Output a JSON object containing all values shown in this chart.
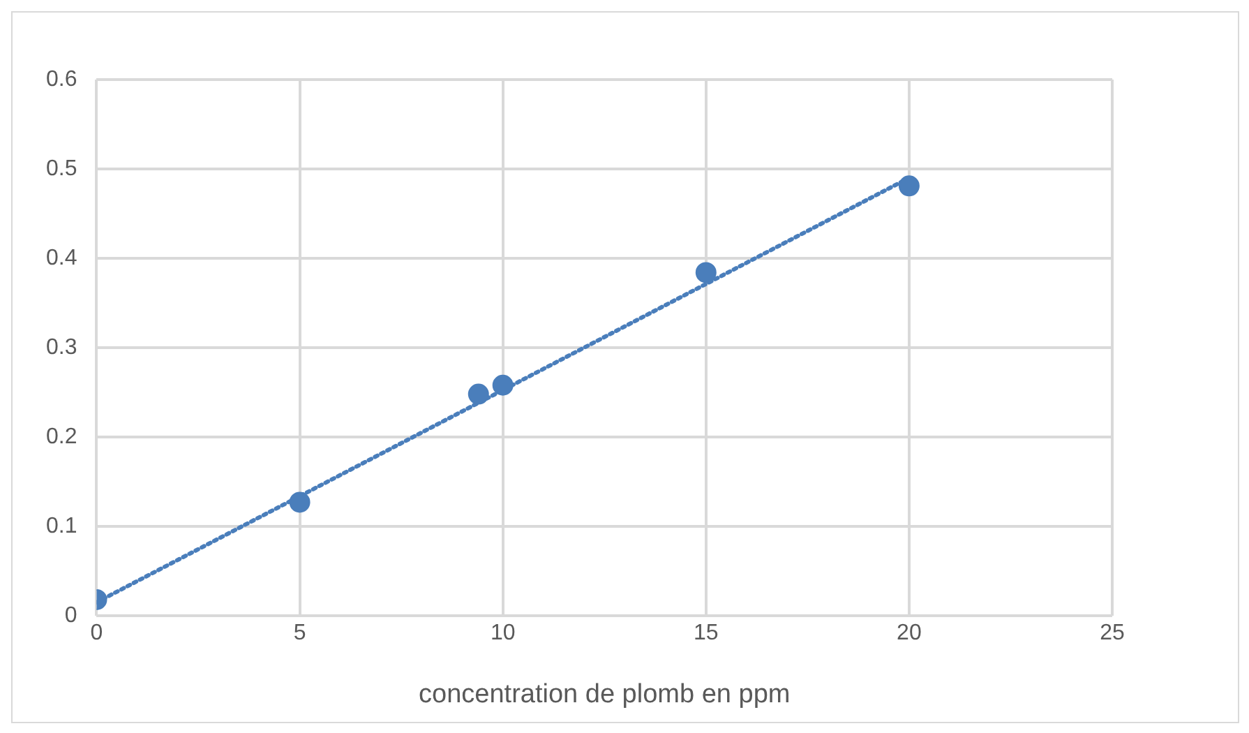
{
  "chart_data": {
    "type": "scatter",
    "xlabel": "concentration de plomb en ppm",
    "x": [
      0,
      5,
      9.4,
      10,
      15,
      20
    ],
    "series": [
      {
        "type": "scatter",
        "color": "#4a7ebb",
        "marker": "circle",
        "values": [
          0.018,
          0.127,
          0.248,
          0.258,
          0.384,
          0.481
        ]
      },
      {
        "type": "line",
        "color": "#4a7ebb",
        "line_style": "dotted",
        "marker": "none",
        "x": [
          0,
          20
        ],
        "values": [
          0.015,
          0.49
        ]
      }
    ],
    "xlim": [
      0,
      25
    ],
    "xticks": [
      0,
      5,
      10,
      15,
      20,
      25
    ],
    "ylim": [
      0,
      0.6
    ],
    "yticks": [
      0,
      0.1,
      0.2,
      0.3,
      0.4,
      0.5,
      0.6
    ],
    "grid": true,
    "legend": false
  }
}
